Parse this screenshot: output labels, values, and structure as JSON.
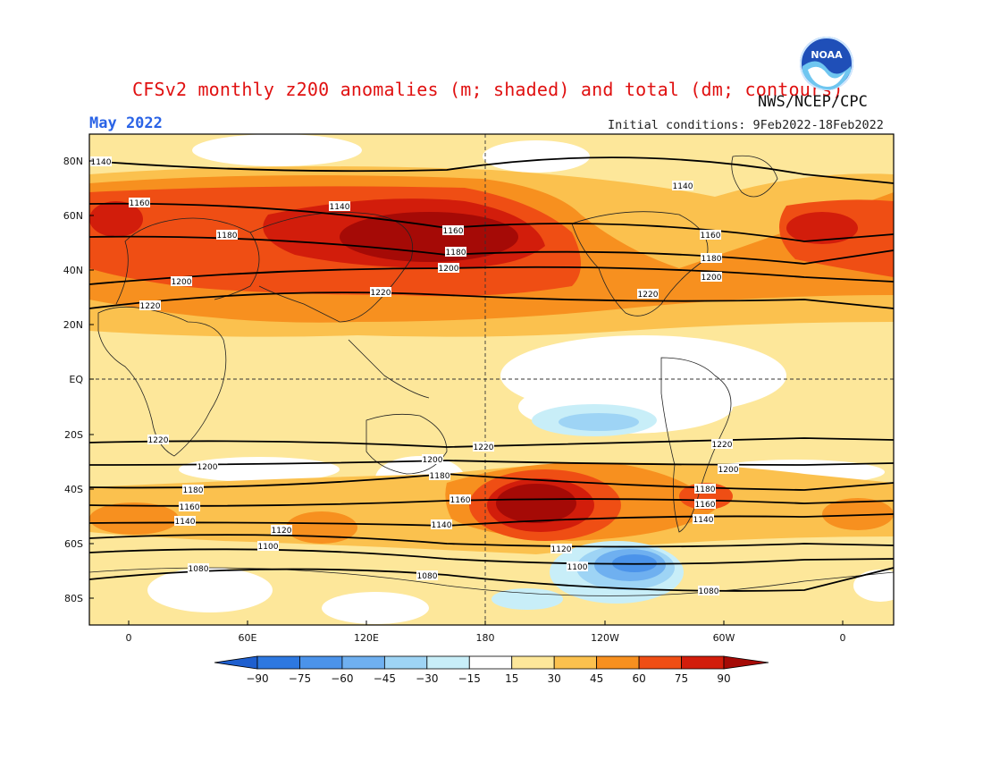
{
  "header": {
    "title": "CFSv2 monthly z200 anomalies (m; shaded) and total (dm; contours)",
    "month": "May 2022",
    "agency": "NWS/NCEP/CPC",
    "initial_conditions": "Initial conditions: 9Feb2022-18Feb2022",
    "logo_text": "NOAA"
  },
  "map": {
    "lat_labels": [
      "80N",
      "60N",
      "40N",
      "20N",
      "EQ",
      "20S",
      "40S",
      "60S",
      "80S"
    ],
    "lon_labels": [
      "0",
      "60E",
      "120E",
      "180",
      "120W",
      "60W",
      "0"
    ]
  },
  "colorbar": {
    "levels": [
      "-90",
      "-75",
      "-60",
      "-45",
      "-30",
      "-15",
      "15",
      "30",
      "45",
      "60",
      "75",
      "90"
    ],
    "colors": [
      "#1e5fcf",
      "#2d78e0",
      "#4b93ea",
      "#6fb0f0",
      "#9ed4f5",
      "#c8eef8",
      "#ffffff",
      "#fde79a",
      "#fbc14e",
      "#f7901f",
      "#ef4e14",
      "#d21d0b",
      "#a50a06"
    ]
  },
  "contours": {
    "north": [
      {
        "value": "1140",
        "labels": [
          "1140",
          "1140",
          "1140"
        ]
      },
      {
        "value": "1160",
        "labels": [
          "1160",
          "1160",
          "1160"
        ]
      },
      {
        "value": "1180",
        "labels": [
          "1180",
          "1180",
          "1180"
        ]
      },
      {
        "value": "1200",
        "labels": [
          "1200",
          "1200",
          "1200"
        ]
      },
      {
        "value": "1220",
        "labels": [
          "1220",
          "1220",
          "1220"
        ]
      }
    ],
    "south": [
      {
        "value": "1220",
        "labels": [
          "1220",
          "1220",
          "1220"
        ]
      },
      {
        "value": "1200",
        "labels": [
          "1200",
          "1200",
          "1200"
        ]
      },
      {
        "value": "1180",
        "labels": [
          "1180",
          "1180",
          "1180"
        ]
      },
      {
        "value": "1160",
        "labels": [
          "1160",
          "1160",
          "1160"
        ]
      },
      {
        "value": "1140",
        "labels": [
          "1140",
          "1140",
          "1140"
        ]
      },
      {
        "value": "1120",
        "labels": [
          "1120",
          "1120"
        ]
      },
      {
        "value": "1100",
        "labels": [
          "1100",
          "1100"
        ]
      },
      {
        "value": "1080",
        "labels": [
          "1080",
          "1080",
          "1080"
        ]
      }
    ]
  }
}
